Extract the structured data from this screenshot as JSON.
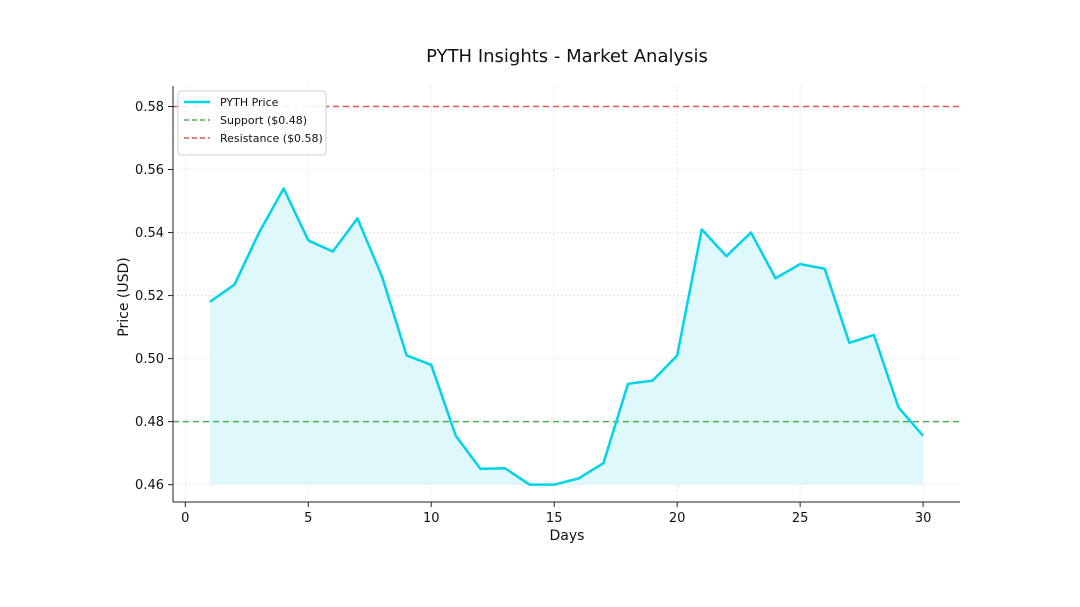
{
  "chart_data": {
    "type": "line",
    "title": "PYTH Insights - Market Analysis",
    "xlabel": "Days",
    "ylabel": "Price (USD)",
    "xlim": [
      -0.5,
      31.5
    ],
    "ylim": [
      0.4545,
      0.5865
    ],
    "xticks": [
      0,
      5,
      10,
      15,
      20,
      25,
      30
    ],
    "yticks": [
      0.46,
      0.48,
      0.5,
      0.52,
      0.54,
      0.56,
      0.58
    ],
    "ytick_labels": [
      "0.46",
      "0.48",
      "0.50",
      "0.52",
      "0.54",
      "0.56",
      "0.58"
    ],
    "grid": true,
    "legend_position": "top-left",
    "series": [
      {
        "name": "PYTH Price",
        "color": "#00d4e6",
        "fill_color": "#dff8fb",
        "fill_baseline": 0.46,
        "x": [
          1,
          2,
          3,
          4,
          5,
          6,
          7,
          8,
          9,
          10,
          11,
          12,
          13,
          14,
          15,
          16,
          17,
          18,
          19,
          20,
          21,
          22,
          23,
          24,
          25,
          26,
          27,
          28,
          29,
          30
        ],
        "y": [
          0.518,
          0.5235,
          0.54,
          0.554,
          0.5375,
          0.534,
          0.5445,
          0.526,
          0.501,
          0.498,
          0.4755,
          0.465,
          0.4652,
          0.46,
          0.46,
          0.462,
          0.4668,
          0.492,
          0.493,
          0.501,
          0.541,
          0.5325,
          0.54,
          0.5255,
          0.53,
          0.5285,
          0.505,
          0.5075,
          0.4845,
          0.4755
        ]
      }
    ],
    "reference_lines": [
      {
        "name": "Support ($0.48)",
        "value": 0.48,
        "color": "#4caf50",
        "style": "dashed"
      },
      {
        "name": "Resistance ($0.58)",
        "value": 0.58,
        "color": "#e05a4f",
        "style": "dashed"
      }
    ]
  }
}
